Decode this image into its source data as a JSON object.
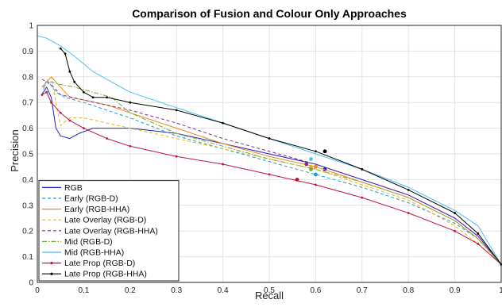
{
  "chart_data": {
    "type": "line",
    "title": "Comparison of Fusion and Colour Only Approaches",
    "xlabel": "Recall",
    "ylabel": "Precision",
    "xlim": [
      0,
      1
    ],
    "ylim": [
      0,
      1
    ],
    "xticks": [
      "0",
      "0.1",
      "0.2",
      "0.3",
      "0.4",
      "0.5",
      "0.6",
      "0.7",
      "0.8",
      "0.9",
      "1"
    ],
    "yticks": [
      "0",
      "0.1",
      "0.2",
      "0.3",
      "0.4",
      "0.5",
      "0.6",
      "0.7",
      "0.8",
      "0.9",
      "1"
    ],
    "grid": true,
    "legend_position": "bottom-left",
    "series": [
      {
        "name": "RGB",
        "color": "#1f1fd0",
        "dash": "solid",
        "marker": "none",
        "points": [
          [
            0.01,
            0.73
          ],
          [
            0.02,
            0.76
          ],
          [
            0.03,
            0.72
          ],
          [
            0.04,
            0.6
          ],
          [
            0.05,
            0.57
          ],
          [
            0.07,
            0.56
          ],
          [
            0.09,
            0.58
          ],
          [
            0.12,
            0.6
          ],
          [
            0.2,
            0.6
          ],
          [
            0.3,
            0.58
          ],
          [
            0.4,
            0.54
          ],
          [
            0.5,
            0.5
          ],
          [
            0.6,
            0.46
          ],
          [
            0.7,
            0.4
          ],
          [
            0.8,
            0.34
          ],
          [
            0.9,
            0.25
          ],
          [
            0.95,
            0.18
          ],
          [
            1.0,
            0.07
          ]
        ],
        "highlight": [
          0.62,
          0.44
        ]
      },
      {
        "name": "Early (RGB-D)",
        "color": "#1f9ad6",
        "dash": "dash",
        "marker": "none",
        "points": [
          [
            0.01,
            0.73
          ],
          [
            0.02,
            0.79
          ],
          [
            0.04,
            0.74
          ],
          [
            0.06,
            0.72
          ],
          [
            0.08,
            0.71
          ],
          [
            0.1,
            0.7
          ],
          [
            0.2,
            0.64
          ],
          [
            0.3,
            0.57
          ],
          [
            0.4,
            0.52
          ],
          [
            0.5,
            0.47
          ],
          [
            0.6,
            0.42
          ],
          [
            0.7,
            0.37
          ],
          [
            0.8,
            0.31
          ],
          [
            0.9,
            0.23
          ],
          [
            0.95,
            0.17
          ],
          [
            1.0,
            0.07
          ]
        ],
        "highlight": [
          0.6,
          0.42
        ]
      },
      {
        "name": "Early (RGB-HHA)",
        "color": "#e8871e",
        "dash": "solid",
        "marker": "none",
        "points": [
          [
            0.01,
            0.76
          ],
          [
            0.03,
            0.8
          ],
          [
            0.05,
            0.76
          ],
          [
            0.07,
            0.72
          ],
          [
            0.1,
            0.71
          ],
          [
            0.15,
            0.69
          ],
          [
            0.2,
            0.66
          ],
          [
            0.3,
            0.6
          ],
          [
            0.4,
            0.54
          ],
          [
            0.5,
            0.49
          ],
          [
            0.6,
            0.45
          ],
          [
            0.7,
            0.39
          ],
          [
            0.8,
            0.33
          ],
          [
            0.9,
            0.24
          ],
          [
            0.95,
            0.17
          ],
          [
            1.0,
            0.07
          ]
        ],
        "highlight": [
          0.6,
          0.45
        ]
      },
      {
        "name": "Late Overlay (RGB-D)",
        "color": "#e8b21e",
        "dash": "dash",
        "marker": "none",
        "points": [
          [
            0.02,
            0.78
          ],
          [
            0.03,
            0.8
          ],
          [
            0.04,
            0.7
          ],
          [
            0.05,
            0.61
          ],
          [
            0.07,
            0.64
          ],
          [
            0.1,
            0.64
          ],
          [
            0.15,
            0.62
          ],
          [
            0.2,
            0.6
          ],
          [
            0.3,
            0.56
          ],
          [
            0.4,
            0.52
          ],
          [
            0.5,
            0.48
          ],
          [
            0.6,
            0.44
          ],
          [
            0.7,
            0.38
          ],
          [
            0.8,
            0.32
          ],
          [
            0.9,
            0.22
          ],
          [
            0.95,
            0.15
          ],
          [
            1.0,
            0.07
          ]
        ],
        "highlight": [
          0.59,
          0.45
        ]
      },
      {
        "name": "Late Overlay (RGB-HHA)",
        "color": "#7e2f8e",
        "dash": "dash",
        "marker": "none",
        "points": [
          [
            0.01,
            0.79
          ],
          [
            0.02,
            0.78
          ],
          [
            0.03,
            0.77
          ],
          [
            0.05,
            0.73
          ],
          [
            0.1,
            0.71
          ],
          [
            0.2,
            0.67
          ],
          [
            0.3,
            0.62
          ],
          [
            0.4,
            0.56
          ],
          [
            0.5,
            0.51
          ],
          [
            0.6,
            0.46
          ],
          [
            0.7,
            0.4
          ],
          [
            0.8,
            0.34
          ],
          [
            0.9,
            0.25
          ],
          [
            0.95,
            0.18
          ],
          [
            1.0,
            0.07
          ]
        ],
        "highlight": [
          0.58,
          0.46
        ]
      },
      {
        "name": "Mid (RGB-D)",
        "color": "#77ac30",
        "dash": "dashdot",
        "marker": "none",
        "points": [
          [
            0.01,
            0.76
          ],
          [
            0.03,
            0.78
          ],
          [
            0.05,
            0.77
          ],
          [
            0.08,
            0.76
          ],
          [
            0.12,
            0.74
          ],
          [
            0.16,
            0.72
          ],
          [
            0.2,
            0.66
          ],
          [
            0.3,
            0.58
          ],
          [
            0.4,
            0.53
          ],
          [
            0.5,
            0.48
          ],
          [
            0.6,
            0.44
          ],
          [
            0.7,
            0.39
          ],
          [
            0.8,
            0.33
          ],
          [
            0.9,
            0.24
          ],
          [
            0.95,
            0.17
          ],
          [
            1.0,
            0.07
          ]
        ],
        "highlight": [
          0.59,
          0.44
        ]
      },
      {
        "name": "Mid (RGB-HHA)",
        "color": "#4dbeee",
        "dash": "solid",
        "marker": "none",
        "points": [
          [
            0.0,
            0.96
          ],
          [
            0.02,
            0.95
          ],
          [
            0.05,
            0.92
          ],
          [
            0.08,
            0.88
          ],
          [
            0.12,
            0.82
          ],
          [
            0.2,
            0.74
          ],
          [
            0.3,
            0.68
          ],
          [
            0.4,
            0.62
          ],
          [
            0.5,
            0.56
          ],
          [
            0.6,
            0.5
          ],
          [
            0.7,
            0.44
          ],
          [
            0.8,
            0.37
          ],
          [
            0.9,
            0.28
          ],
          [
            0.95,
            0.22
          ],
          [
            1.0,
            0.07
          ]
        ],
        "highlight": [
          0.59,
          0.48
        ]
      },
      {
        "name": "Late Prop (RGB-D)",
        "color": "#c0143c",
        "dash": "solid",
        "marker": "dot",
        "points": [
          [
            0.01,
            0.73
          ],
          [
            0.02,
            0.74
          ],
          [
            0.03,
            0.7
          ],
          [
            0.05,
            0.66
          ],
          [
            0.07,
            0.63
          ],
          [
            0.1,
            0.6
          ],
          [
            0.15,
            0.56
          ],
          [
            0.2,
            0.53
          ],
          [
            0.3,
            0.49
          ],
          [
            0.4,
            0.46
          ],
          [
            0.5,
            0.42
          ],
          [
            0.6,
            0.38
          ],
          [
            0.7,
            0.33
          ],
          [
            0.8,
            0.27
          ],
          [
            0.9,
            0.2
          ],
          [
            0.95,
            0.15
          ],
          [
            1.0,
            0.07
          ]
        ],
        "highlight": [
          0.56,
          0.4
        ]
      },
      {
        "name": "Late Prop (RGB-HHA)",
        "color": "#000000",
        "dash": "solid",
        "marker": "dot",
        "points": [
          [
            0.05,
            0.91
          ],
          [
            0.06,
            0.89
          ],
          [
            0.07,
            0.82
          ],
          [
            0.08,
            0.78
          ],
          [
            0.1,
            0.74
          ],
          [
            0.12,
            0.72
          ],
          [
            0.15,
            0.72
          ],
          [
            0.2,
            0.7
          ],
          [
            0.3,
            0.67
          ],
          [
            0.4,
            0.62
          ],
          [
            0.5,
            0.56
          ],
          [
            0.6,
            0.51
          ],
          [
            0.7,
            0.44
          ],
          [
            0.8,
            0.36
          ],
          [
            0.9,
            0.27
          ],
          [
            0.95,
            0.19
          ],
          [
            1.0,
            0.07
          ]
        ],
        "highlight": [
          0.62,
          0.51
        ]
      }
    ]
  }
}
